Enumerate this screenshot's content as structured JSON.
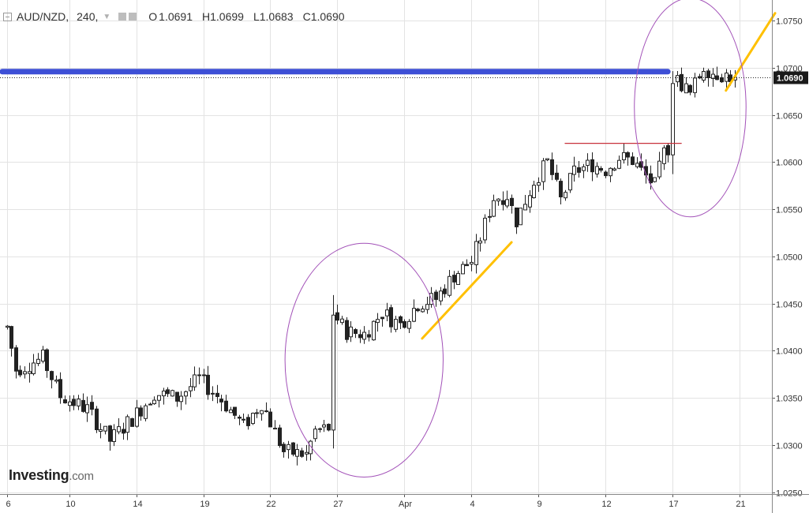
{
  "header": {
    "symbol": "AUD/NZD,",
    "interval": "240,",
    "o_label": "O",
    "o_value": "1.0691",
    "h_label": "H",
    "h_value": "1.0699",
    "l_label": "L",
    "l_value": "1.0683",
    "c_label": "C",
    "c_value": "1.0690"
  },
  "logo": {
    "brand": "Investing",
    "domain": ".com"
  },
  "colors": {
    "up": "#ffffff",
    "down": "#222222",
    "candle_outline": "#222222",
    "grid": "#e3e3e3",
    "blue_line": "#3d4fd6",
    "red_line": "#c8323c",
    "yellow_line": "#ffc000",
    "ellipse": "#a251b8",
    "price_tag_bg": "#1a1a1a",
    "price_tag_text": "#ffffff"
  },
  "icons": [
    "collapse-icon",
    "chevron-down-icon",
    "settings-icon",
    "close-icon"
  ],
  "chart_data": {
    "type": "candlestick",
    "title": "AUD/NZD",
    "interval": "240",
    "ylim": [
      1.0248,
      1.0772
    ],
    "y_ticks": [
      "1.0750",
      "1.0700",
      "1.0650",
      "1.0600",
      "1.0550",
      "1.0500",
      "1.0450",
      "1.0400",
      "1.0350",
      "1.0300",
      "1.0250"
    ],
    "x_ticks": [
      {
        "label": "6",
        "index": 0
      },
      {
        "label": "10",
        "index": 14
      },
      {
        "label": "14",
        "index": 29
      },
      {
        "label": "19",
        "index": 44
      },
      {
        "label": "22",
        "index": 59
      },
      {
        "label": "27",
        "index": 74
      },
      {
        "label": "Apr",
        "index": 89
      },
      {
        "label": "4",
        "index": 104
      },
      {
        "label": "9",
        "index": 119
      },
      {
        "label": "12",
        "index": 134
      },
      {
        "label": "17",
        "index": 149
      },
      {
        "label": "21",
        "index": 164
      }
    ],
    "last_price": "1.0690",
    "current_price": 1.069,
    "grid": true,
    "key_points": [
      {
        "i": 0,
        "p": 1.0425
      },
      {
        "i": 2,
        "p": 1.038
      },
      {
        "i": 8,
        "p": 1.0392
      },
      {
        "i": 12,
        "p": 1.0352
      },
      {
        "i": 18,
        "p": 1.0338
      },
      {
        "i": 23,
        "p": 1.0305
      },
      {
        "i": 28,
        "p": 1.0328
      },
      {
        "i": 33,
        "p": 1.0355
      },
      {
        "i": 38,
        "p": 1.035
      },
      {
        "i": 43,
        "p": 1.037
      },
      {
        "i": 48,
        "p": 1.0348
      },
      {
        "i": 53,
        "p": 1.032
      },
      {
        "i": 57,
        "p": 1.0345
      },
      {
        "i": 62,
        "p": 1.0293
      },
      {
        "i": 67,
        "p": 1.029
      },
      {
        "i": 69,
        "p": 1.0315
      },
      {
        "i": 72,
        "p": 1.0318
      },
      {
        "i": 73,
        "p": 1.044
      },
      {
        "i": 76,
        "p": 1.042
      },
      {
        "i": 80,
        "p": 1.0418
      },
      {
        "i": 84,
        "p": 1.044
      },
      {
        "i": 88,
        "p": 1.0428
      },
      {
        "i": 92,
        "p": 1.045
      },
      {
        "i": 96,
        "p": 1.0455
      },
      {
        "i": 100,
        "p": 1.048
      },
      {
        "i": 104,
        "p": 1.0495
      },
      {
        "i": 106,
        "p": 1.052
      },
      {
        "i": 109,
        "p": 1.0562
      },
      {
        "i": 112,
        "p": 1.0565
      },
      {
        "i": 114,
        "p": 1.0538
      },
      {
        "i": 118,
        "p": 1.058
      },
      {
        "i": 121,
        "p": 1.06
      },
      {
        "i": 124,
        "p": 1.056
      },
      {
        "i": 127,
        "p": 1.059
      },
      {
        "i": 131,
        "p": 1.0598
      },
      {
        "i": 134,
        "p": 1.0592
      },
      {
        "i": 137,
        "p": 1.0605
      },
      {
        "i": 140,
        "p": 1.0602
      },
      {
        "i": 143,
        "p": 1.0585
      },
      {
        "i": 145,
        "p": 1.0575
      },
      {
        "i": 147,
        "p": 1.061
      },
      {
        "i": 148,
        "p": 1.0615
      },
      {
        "i": 149,
        "p": 1.069
      },
      {
        "i": 151,
        "p": 1.0683
      },
      {
        "i": 153,
        "p": 1.0672
      },
      {
        "i": 156,
        "p": 1.0702
      },
      {
        "i": 158,
        "p": 1.0695
      },
      {
        "i": 161,
        "p": 1.0692
      },
      {
        "i": 163,
        "p": 1.069
      }
    ],
    "jumps": [
      73,
      149
    ],
    "annotations": {
      "horizontal_lines": [
        {
          "color": "blue",
          "price": 1.0696,
          "from_index": -1,
          "to_index": 148
        },
        {
          "color": "red",
          "price": 1.062,
          "from_index": 125,
          "to_index": 151
        }
      ],
      "trend_lines": [
        {
          "from": {
            "index": 93,
            "price": 1.0413
          },
          "to": {
            "index": 113,
            "price": 1.0515
          }
        },
        {
          "from": {
            "index": 161,
            "price": 1.0676
          },
          "to": {
            "index": 172,
            "price": 1.0758
          }
        }
      ],
      "ellipses": [
        {
          "center_index": 80,
          "center_price": 1.039,
          "rx_bars": 17.7,
          "ry_price": 0.0124
        },
        {
          "center_index": 153,
          "center_price": 1.0658,
          "rx_bars": 12.5,
          "ry_price": 0.0116
        }
      ]
    }
  }
}
